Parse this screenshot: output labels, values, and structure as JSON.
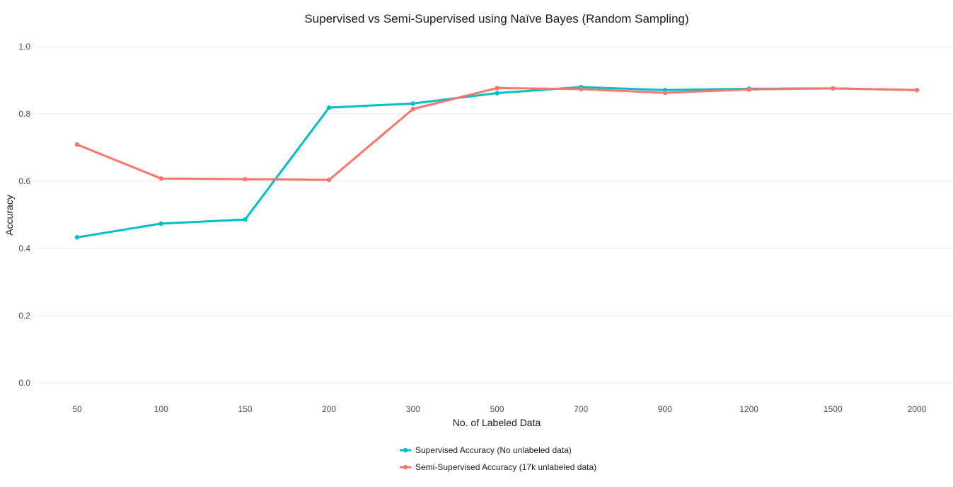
{
  "chart_data": {
    "type": "line",
    "title": "Supervised vs Semi-Supervised using Naïve Bayes (Random Sampling)",
    "xlabel": "No. of Labeled Data",
    "ylabel": "Accuracy",
    "categories": [
      "50",
      "100",
      "150",
      "200",
      "300",
      "500",
      "700",
      "900",
      "1200",
      "1500",
      "2000"
    ],
    "ylim": [
      0,
      1
    ],
    "yticks": [
      "0.0",
      "0.2",
      "0.4",
      "0.6",
      "0.8",
      "1.0"
    ],
    "grid": true,
    "legend_position": "bottom",
    "series": [
      {
        "name": "Supervised Accuracy (No unlabeled data)",
        "color": "#00BFC4",
        "values": [
          0.433,
          0.474,
          0.486,
          0.819,
          0.831,
          0.862,
          0.88,
          0.871,
          0.875,
          0.876,
          0.871
        ]
      },
      {
        "name": "Semi-Supervised Accuracy (17k unlabeled data)",
        "color": "#F8766D",
        "values": [
          0.709,
          0.608,
          0.606,
          0.604,
          0.815,
          0.877,
          0.874,
          0.863,
          0.873,
          0.876,
          0.871
        ]
      }
    ]
  }
}
